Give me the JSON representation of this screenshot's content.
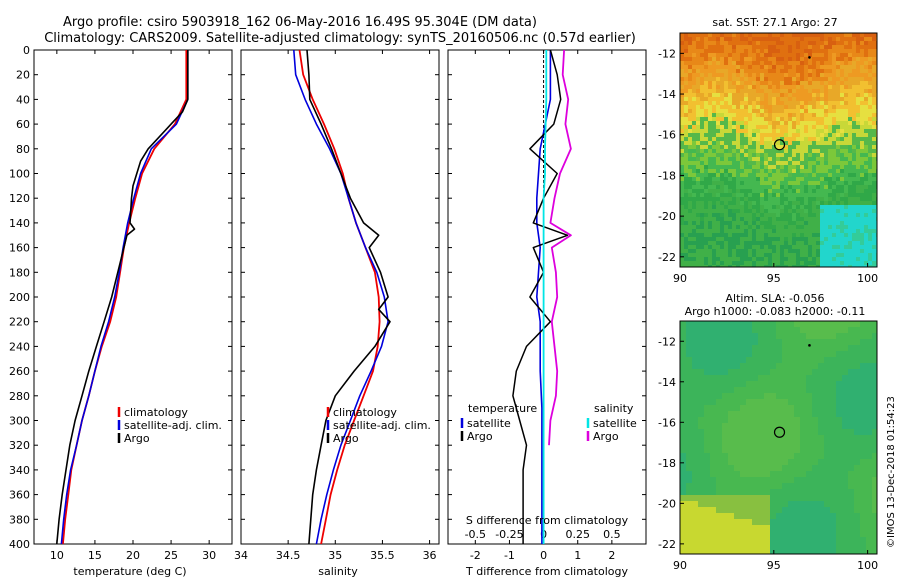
{
  "title": {
    "line1": "Argo profile: csiro 5903918_162 06-May-2016 16.49S 95.304E (DM data)",
    "line2": "Climatology: CARS2009. Satellite-adjusted climatology: synTS_20160506.nc (0.57d earlier)"
  },
  "depth_ticks": [
    "0",
    "20",
    "40",
    "60",
    "80",
    "100",
    "120",
    "140",
    "160",
    "180",
    "200",
    "220",
    "240",
    "260",
    "280",
    "300",
    "320",
    "340",
    "360",
    "380",
    "400"
  ],
  "colors": {
    "climatology": "#ee0000",
    "satellite": "#0000dd",
    "argo": "#000000",
    "sat_salinity": "#00e5e5",
    "clim_salinity_diff": "#dd00dd"
  },
  "watermark": "©IMOS 13-Dec-2018 01:54:23",
  "chart_data": [
    {
      "type": "line",
      "panel": "temperature",
      "xlabel": "temperature (deg C)",
      "ylabel": "depth",
      "xlim": [
        7,
        33
      ],
      "ylim": [
        400,
        0
      ],
      "xticks": [
        "10",
        "15",
        "20",
        "25",
        "30"
      ],
      "legend": [
        "climatology",
        "satellite-adj. clim.",
        "Argo"
      ],
      "series": [
        {
          "name": "climatology",
          "depth": [
            0,
            40,
            60,
            80,
            100,
            120,
            140,
            160,
            180,
            200,
            220,
            240,
            260,
            280,
            300,
            320,
            340,
            360,
            380,
            400
          ],
          "values": [
            27.0,
            27.0,
            25.5,
            22.8,
            21.2,
            20.3,
            19.5,
            18.8,
            18.3,
            17.8,
            17.0,
            15.9,
            15.0,
            14.2,
            13.3,
            12.6,
            11.9,
            11.5,
            11.1,
            10.8
          ]
        },
        {
          "name": "satellite-adj. clim.",
          "depth": [
            0,
            40,
            60,
            80,
            100,
            120,
            140,
            160,
            180,
            200,
            220,
            240,
            260,
            280,
            300,
            320,
            340,
            360,
            380,
            400
          ],
          "values": [
            27.2,
            27.2,
            25.7,
            22.4,
            21.0,
            20.1,
            19.3,
            18.7,
            18.2,
            17.6,
            16.8,
            15.8,
            15.0,
            14.2,
            13.3,
            12.6,
            11.8,
            11.3,
            10.9,
            10.6
          ]
        },
        {
          "name": "Argo",
          "depth": [
            0,
            40,
            50,
            60,
            80,
            90,
            100,
            110,
            120,
            140,
            145,
            150,
            160,
            180,
            200,
            220,
            240,
            260,
            280,
            300,
            320,
            340,
            360,
            380,
            400
          ],
          "values": [
            27.2,
            27.2,
            26.5,
            25.0,
            22.0,
            21.0,
            20.5,
            20.0,
            19.8,
            19.6,
            20.2,
            19.2,
            18.8,
            18.0,
            17.2,
            16.2,
            15.2,
            14.2,
            13.3,
            12.4,
            11.7,
            11.2,
            10.7,
            10.3,
            10.0
          ]
        }
      ]
    },
    {
      "type": "line",
      "panel": "salinity",
      "xlabel": "salinity",
      "xlim": [
        34,
        36.1
      ],
      "ylim": [
        400,
        0
      ],
      "xticks": [
        "34",
        "34.5",
        "35",
        "35.5",
        "36"
      ],
      "legend": [
        "climatology",
        "satellite-adj. clim.",
        "Argo"
      ],
      "series": [
        {
          "name": "climatology",
          "depth": [
            0,
            20,
            40,
            60,
            80,
            100,
            120,
            140,
            160,
            180,
            200,
            220,
            240,
            260,
            280,
            300,
            320,
            340,
            360,
            380,
            400
          ],
          "values": [
            34.62,
            34.66,
            34.76,
            34.88,
            34.99,
            35.08,
            35.14,
            35.22,
            35.32,
            35.42,
            35.46,
            35.47,
            35.45,
            35.4,
            35.3,
            35.2,
            35.1,
            35.02,
            34.95,
            34.9,
            34.85
          ]
        },
        {
          "name": "satellite-adj. clim.",
          "depth": [
            0,
            20,
            40,
            60,
            80,
            100,
            120,
            140,
            160,
            180,
            200,
            220,
            240,
            260,
            280,
            300,
            320,
            340,
            360,
            380,
            400
          ],
          "values": [
            34.56,
            34.58,
            34.68,
            34.8,
            34.94,
            35.06,
            35.14,
            35.22,
            35.32,
            35.44,
            35.52,
            35.56,
            35.49,
            35.38,
            35.26,
            35.16,
            35.06,
            34.98,
            34.91,
            34.85,
            34.8
          ]
        },
        {
          "name": "Argo",
          "depth": [
            0,
            20,
            40,
            60,
            80,
            100,
            120,
            140,
            150,
            160,
            180,
            200,
            210,
            220,
            240,
            260,
            280,
            300,
            320,
            340,
            360,
            380,
            400
          ],
          "values": [
            34.7,
            34.72,
            34.73,
            34.85,
            34.96,
            35.06,
            35.16,
            35.3,
            35.46,
            35.36,
            35.48,
            35.56,
            35.46,
            35.58,
            35.42,
            35.2,
            35.0,
            34.9,
            34.85,
            34.8,
            34.76,
            34.74,
            34.72
          ]
        }
      ]
    },
    {
      "type": "line",
      "panel": "differences",
      "xlabel": "T difference from climatology",
      "xlabel2": "S difference from climatology",
      "xlim": [
        -2.8,
        3.0
      ],
      "ylim": [
        400,
        0
      ],
      "xticks": [
        "-2",
        "-1",
        "0",
        "1",
        "2"
      ],
      "xticks2": [
        "-0.5",
        "-0.25",
        "0",
        "0.25",
        "0.5"
      ],
      "legend_temperature_title": "temperature",
      "legend_salinity_title": "salinity",
      "legend": [
        "satellite",
        "Argo",
        "satellite",
        "Argo"
      ],
      "series": [
        {
          "name": "T satellite",
          "depth": [
            0,
            40,
            80,
            120,
            140,
            160,
            200,
            220,
            260,
            290,
            300,
            400
          ],
          "values": [
            0.2,
            0.2,
            -0.1,
            -0.2,
            -0.2,
            -0.1,
            -0.2,
            -0.1,
            -0.1,
            -0.05,
            -0.05,
            -0.05
          ]
        },
        {
          "name": "T Argo",
          "depth": [
            0,
            20,
            40,
            60,
            80,
            100,
            120,
            140,
            150,
            160,
            180,
            200,
            220,
            240,
            260,
            280,
            300,
            320,
            340,
            400
          ],
          "values": [
            0.2,
            0.4,
            0.5,
            0.3,
            -0.4,
            0.4,
            0.0,
            -0.3,
            0.7,
            -0.3,
            0.0,
            -0.4,
            0.2,
            -0.5,
            -0.8,
            -0.9,
            -0.7,
            -0.5,
            -0.6,
            -0.6
          ]
        },
        {
          "name": "S satellite",
          "depth": [
            0,
            40,
            80,
            100,
            120,
            200,
            300,
            400
          ],
          "values": [
            0.02,
            0.02,
            0.01,
            0.01,
            0.0,
            0.0,
            0.0,
            0.0
          ]
        },
        {
          "name": "S Argo",
          "depth": [
            0,
            20,
            40,
            60,
            80,
            100,
            120,
            140,
            150,
            160,
            180,
            200,
            220,
            240,
            260,
            280,
            300,
            320
          ],
          "values": [
            0.15,
            0.14,
            0.18,
            0.16,
            0.2,
            0.12,
            0.08,
            0.05,
            0.2,
            0.06,
            0.09,
            0.1,
            0.06,
            0.08,
            0.1,
            0.09,
            0.05,
            0.04
          ]
        }
      ]
    },
    {
      "type": "heatmap",
      "panel": "sst_map",
      "title": "sat. SST: 27.1 Argo: 27",
      "xlim": [
        90,
        100.5
      ],
      "ylim": [
        -22.5,
        -11
      ],
      "xticks": [
        "90",
        "95",
        "100"
      ],
      "yticks": [
        "-12",
        "-14",
        "-16",
        "-18",
        "-20",
        "-22"
      ],
      "argo_position": [
        95.304,
        -16.49
      ]
    },
    {
      "type": "heatmap",
      "panel": "sla_map",
      "title": "Altim. SLA: -0.056",
      "subtitle": "Argo h1000: -0.083 h2000: -0.11",
      "xlim": [
        90,
        100.5
      ],
      "ylim": [
        -22.5,
        -11
      ],
      "xticks": [
        "90",
        "95",
        "100"
      ],
      "yticks": [
        "-12",
        "-14",
        "-16",
        "-18",
        "-20",
        "-22"
      ],
      "argo_position": [
        95.304,
        -16.49
      ]
    }
  ]
}
